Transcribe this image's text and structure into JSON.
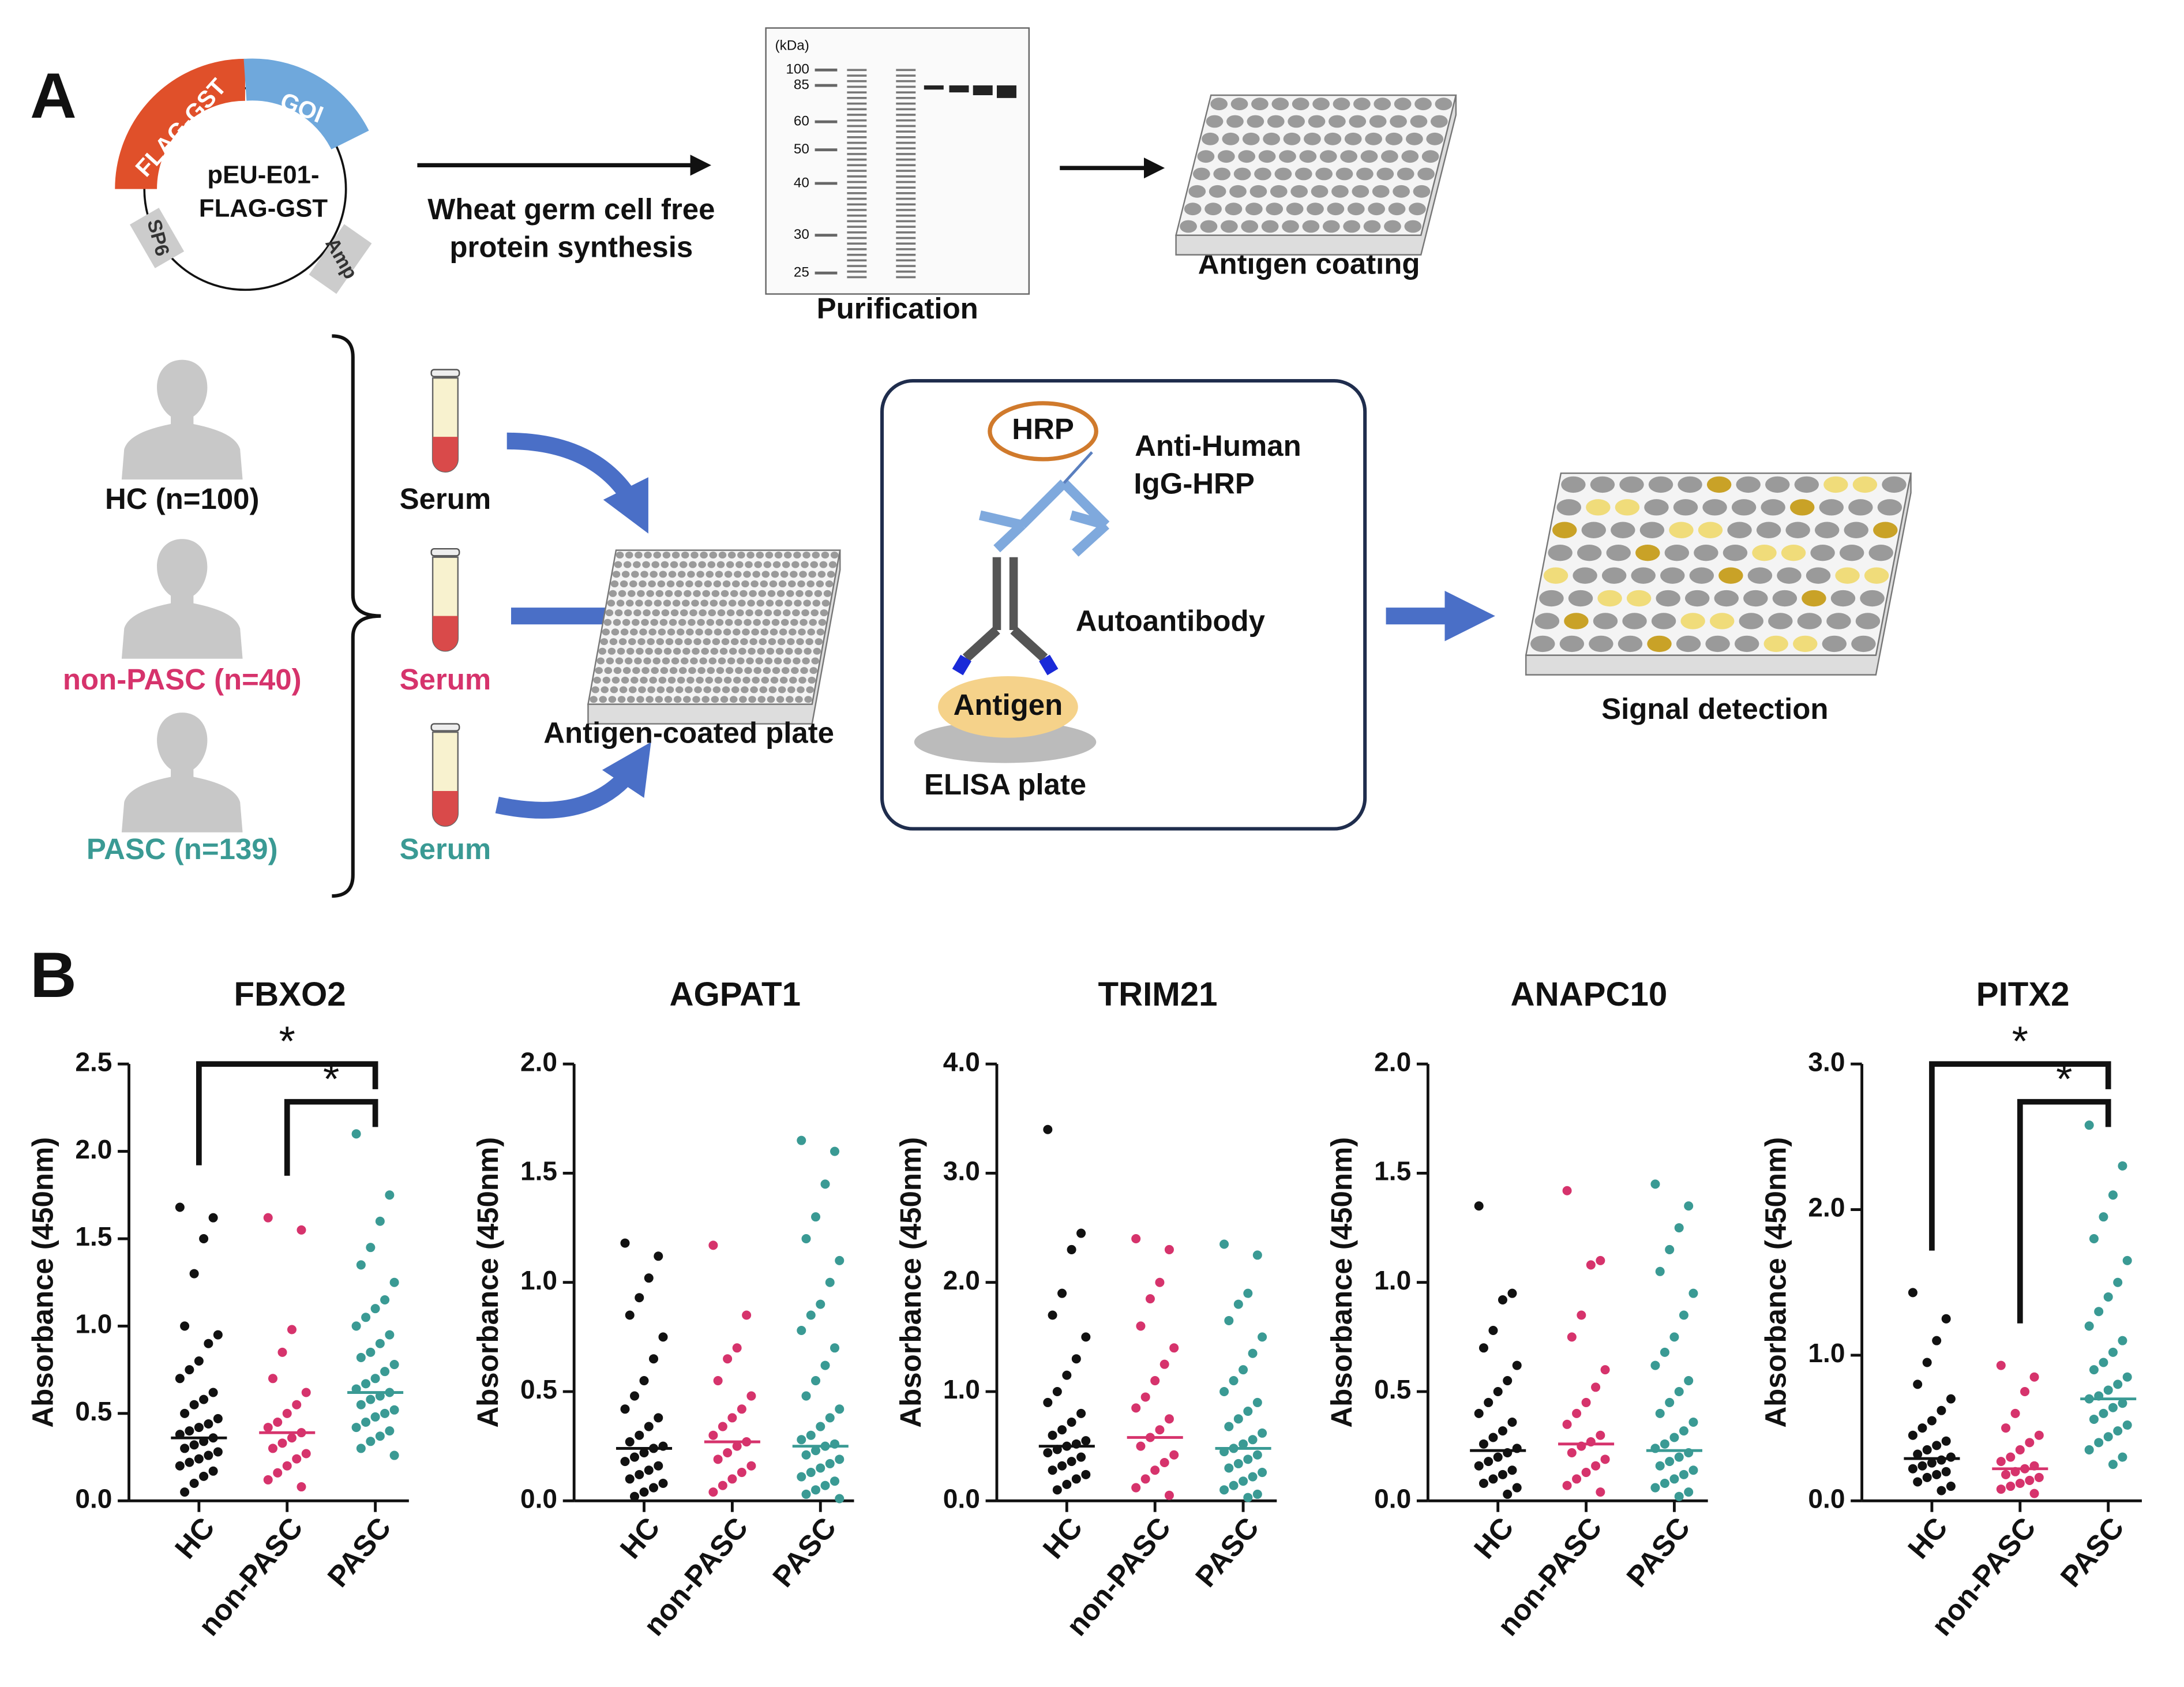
{
  "panel_a": {
    "label": "A",
    "plasmid": {
      "name_lines": [
        "pEU-E01-",
        "FLAG-GST"
      ],
      "segments": [
        "FLAG-GST",
        "GOI",
        "SP6",
        "Amp"
      ]
    },
    "synthesis_lines": [
      "Wheat germ cell free",
      "protein synthesis"
    ],
    "gel": {
      "unit": "(kDa)",
      "markers": [
        100,
        85,
        60,
        50,
        40,
        30,
        25
      ],
      "caption": "Purification"
    },
    "coating_caption": "Antigen coating",
    "groups": [
      {
        "label": "HC (n=100)",
        "sample": "Serum",
        "color": "#111111"
      },
      {
        "label": "non-PASC (n=40)",
        "sample": "Serum",
        "color": "#d6336c"
      },
      {
        "label": "PASC (n=139)",
        "sample": "Serum",
        "color": "#3a9a94"
      }
    ],
    "plate_caption": "Antigen-coated plate",
    "elisa": {
      "hrp": "HRP",
      "secondary_lines": [
        "Anti-Human",
        "IgG-HRP"
      ],
      "autoantibody": "Autoantibody",
      "antigen": "Antigen",
      "plate": "ELISA plate"
    },
    "detection_caption": "Signal detection"
  },
  "panel_b": {
    "label": "B"
  },
  "chart_data": [
    {
      "type": "strip",
      "title": "FBXO2",
      "ylabel": "Absorbance (450nm)",
      "categories": [
        "HC",
        "non-PASC",
        "PASC"
      ],
      "ylim": [
        0,
        2.5
      ],
      "yticks": [
        {
          "value": 0,
          "label": "0.0"
        },
        {
          "value": 0.5,
          "label": "0.5"
        },
        {
          "value": 1,
          "label": "1.0"
        },
        {
          "value": 1.5,
          "label": "1.5"
        },
        {
          "value": 2,
          "label": "2.0"
        },
        {
          "value": 2.5,
          "label": "2.5"
        }
      ],
      "series": [
        {
          "color": "#111111",
          "median": 0.36,
          "values": [
            1.68,
            1.62,
            1.5,
            1.3,
            1.0,
            0.95,
            0.9,
            0.8,
            0.75,
            0.7,
            0.62,
            0.58,
            0.55,
            0.5,
            0.47,
            0.44,
            0.42,
            0.4,
            0.38,
            0.36,
            0.34,
            0.32,
            0.3,
            0.28,
            0.26,
            0.24,
            0.22,
            0.2,
            0.17,
            0.14,
            0.1,
            0.05
          ]
        },
        {
          "color": "#d6336c",
          "median": 0.39,
          "values": [
            1.62,
            1.55,
            0.98,
            0.85,
            0.7,
            0.62,
            0.55,
            0.5,
            0.45,
            0.42,
            0.39,
            0.36,
            0.33,
            0.3,
            0.27,
            0.24,
            0.2,
            0.16,
            0.12,
            0.08
          ]
        },
        {
          "color": "#3a9a94",
          "median": 0.62,
          "values": [
            2.1,
            1.75,
            1.6,
            1.45,
            1.35,
            1.25,
            1.15,
            1.1,
            1.05,
            1.0,
            0.95,
            0.9,
            0.85,
            0.82,
            0.78,
            0.74,
            0.7,
            0.67,
            0.64,
            0.62,
            0.6,
            0.58,
            0.55,
            0.52,
            0.5,
            0.48,
            0.45,
            0.42,
            0.4,
            0.37,
            0.34,
            0.3,
            0.26
          ]
        }
      ],
      "significance": [
        {
          "pair": [
            0,
            2
          ],
          "label": "*"
        },
        {
          "pair": [
            1,
            2
          ],
          "label": "*"
        }
      ]
    },
    {
      "type": "strip",
      "title": "AGPAT1",
      "ylabel": "Absorbance (450nm)",
      "categories": [
        "HC",
        "non-PASC",
        "PASC"
      ],
      "ylim": [
        0,
        2
      ],
      "yticks": [
        {
          "value": 0,
          "label": "0.0"
        },
        {
          "value": 0.5,
          "label": "0.5"
        },
        {
          "value": 1,
          "label": "1.0"
        },
        {
          "value": 1.5,
          "label": "1.5"
        },
        {
          "value": 2,
          "label": "2.0"
        }
      ],
      "series": [
        {
          "color": "#111111",
          "median": 0.24,
          "values": [
            1.18,
            1.12,
            1.02,
            0.93,
            0.85,
            0.75,
            0.65,
            0.55,
            0.48,
            0.42,
            0.38,
            0.34,
            0.3,
            0.27,
            0.25,
            0.24,
            0.22,
            0.2,
            0.18,
            0.16,
            0.14,
            0.12,
            0.1,
            0.08,
            0.06,
            0.04,
            0.02
          ]
        },
        {
          "color": "#d6336c",
          "median": 0.27,
          "values": [
            1.17,
            0.85,
            0.7,
            0.65,
            0.55,
            0.48,
            0.42,
            0.38,
            0.34,
            0.3,
            0.27,
            0.25,
            0.22,
            0.19,
            0.16,
            0.13,
            0.1,
            0.07,
            0.04
          ]
        },
        {
          "color": "#3a9a94",
          "median": 0.25,
          "values": [
            1.65,
            1.6,
            1.45,
            1.3,
            1.2,
            1.1,
            1.0,
            0.9,
            0.85,
            0.78,
            0.7,
            0.62,
            0.55,
            0.48,
            0.42,
            0.38,
            0.34,
            0.3,
            0.28,
            0.26,
            0.25,
            0.23,
            0.21,
            0.19,
            0.17,
            0.15,
            0.13,
            0.11,
            0.09,
            0.07,
            0.05,
            0.03,
            0.01
          ]
        }
      ]
    },
    {
      "type": "strip",
      "title": "TRIM21",
      "ylabel": "Absorbance (450nm)",
      "categories": [
        "HC",
        "non-PASC",
        "PASC"
      ],
      "ylim": [
        0,
        4
      ],
      "yticks": [
        {
          "value": 0,
          "label": "0.0"
        },
        {
          "value": 1,
          "label": "1.0"
        },
        {
          "value": 2,
          "label": "2.0"
        },
        {
          "value": 3,
          "label": "3.0"
        },
        {
          "value": 4,
          "label": "4.0"
        }
      ],
      "series": [
        {
          "color": "#111111",
          "median": 0.5,
          "values": [
            3.4,
            2.45,
            2.3,
            1.9,
            1.7,
            1.5,
            1.3,
            1.15,
            1.0,
            0.9,
            0.8,
            0.72,
            0.65,
            0.6,
            0.55,
            0.52,
            0.5,
            0.47,
            0.44,
            0.4,
            0.36,
            0.32,
            0.28,
            0.24,
            0.2,
            0.15,
            0.1
          ]
        },
        {
          "color": "#d6336c",
          "median": 0.58,
          "values": [
            2.4,
            2.3,
            2.0,
            1.85,
            1.6,
            1.4,
            1.25,
            1.1,
            0.95,
            0.85,
            0.75,
            0.65,
            0.58,
            0.5,
            0.42,
            0.35,
            0.28,
            0.2,
            0.12,
            0.05
          ]
        },
        {
          "color": "#3a9a94",
          "median": 0.48,
          "values": [
            2.35,
            2.25,
            1.9,
            1.8,
            1.65,
            1.5,
            1.35,
            1.2,
            1.1,
            1.0,
            0.9,
            0.82,
            0.75,
            0.68,
            0.62,
            0.56,
            0.52,
            0.48,
            0.45,
            0.42,
            0.38,
            0.34,
            0.3,
            0.26,
            0.22,
            0.18,
            0.14,
            0.1,
            0.06,
            0.03
          ]
        }
      ]
    },
    {
      "type": "strip",
      "title": "ANAPC10",
      "ylabel": "Absorbance (450nm)",
      "categories": [
        "HC",
        "non-PASC",
        "PASC"
      ],
      "ylim": [
        0,
        2
      ],
      "yticks": [
        {
          "value": 0,
          "label": "0.0"
        },
        {
          "value": 0.5,
          "label": "0.5"
        },
        {
          "value": 1,
          "label": "1.0"
        },
        {
          "value": 1.5,
          "label": "1.5"
        },
        {
          "value": 2,
          "label": "2.0"
        }
      ],
      "series": [
        {
          "color": "#111111",
          "median": 0.23,
          "values": [
            1.35,
            0.95,
            0.92,
            0.78,
            0.7,
            0.62,
            0.55,
            0.5,
            0.45,
            0.4,
            0.36,
            0.32,
            0.29,
            0.26,
            0.24,
            0.22,
            0.2,
            0.18,
            0.16,
            0.14,
            0.12,
            0.1,
            0.08,
            0.06,
            0.03
          ]
        },
        {
          "color": "#d6336c",
          "median": 0.26,
          "values": [
            1.42,
            1.1,
            1.08,
            0.85,
            0.75,
            0.6,
            0.52,
            0.45,
            0.4,
            0.35,
            0.3,
            0.27,
            0.25,
            0.22,
            0.19,
            0.16,
            0.13,
            0.1,
            0.07,
            0.04
          ]
        },
        {
          "color": "#3a9a94",
          "median": 0.23,
          "values": [
            1.45,
            1.35,
            1.25,
            1.15,
            1.05,
            0.95,
            0.85,
            0.75,
            0.68,
            0.62,
            0.55,
            0.5,
            0.45,
            0.4,
            0.36,
            0.32,
            0.29,
            0.26,
            0.24,
            0.22,
            0.2,
            0.18,
            0.16,
            0.14,
            0.12,
            0.1,
            0.08,
            0.06,
            0.04,
            0.02
          ]
        }
      ]
    },
    {
      "type": "strip",
      "title": "PITX2",
      "ylabel": "Absorbance (450nm)",
      "categories": [
        "HC",
        "non-PASC",
        "PASC"
      ],
      "ylim": [
        0,
        3
      ],
      "yticks": [
        {
          "value": 0,
          "label": "0.0"
        },
        {
          "value": 1,
          "label": "1.0"
        },
        {
          "value": 2,
          "label": "2.0"
        },
        {
          "value": 3,
          "label": "3.0"
        }
      ],
      "series": [
        {
          "color": "#111111",
          "median": 0.29,
          "values": [
            1.43,
            1.25,
            1.1,
            0.95,
            0.8,
            0.7,
            0.62,
            0.55,
            0.5,
            0.45,
            0.41,
            0.38,
            0.35,
            0.32,
            0.3,
            0.28,
            0.26,
            0.24,
            0.22,
            0.2,
            0.18,
            0.16,
            0.13,
            0.1,
            0.07
          ]
        },
        {
          "color": "#d6336c",
          "median": 0.22,
          "values": [
            0.93,
            0.85,
            0.75,
            0.6,
            0.5,
            0.45,
            0.4,
            0.35,
            0.3,
            0.27,
            0.24,
            0.22,
            0.2,
            0.18,
            0.16,
            0.14,
            0.12,
            0.1,
            0.08,
            0.05
          ]
        },
        {
          "color": "#3a9a94",
          "median": 0.7,
          "values": [
            2.58,
            2.3,
            2.1,
            1.95,
            1.8,
            1.65,
            1.5,
            1.4,
            1.3,
            1.2,
            1.1,
            1.02,
            0.95,
            0.9,
            0.85,
            0.8,
            0.76,
            0.72,
            0.7,
            0.67,
            0.64,
            0.6,
            0.56,
            0.52,
            0.48,
            0.44,
            0.4,
            0.35,
            0.3,
            0.25
          ]
        }
      ],
      "significance": [
        {
          "pair": [
            0,
            2
          ],
          "label": "*"
        },
        {
          "pair": [
            1,
            2
          ],
          "label": "*"
        }
      ]
    }
  ]
}
